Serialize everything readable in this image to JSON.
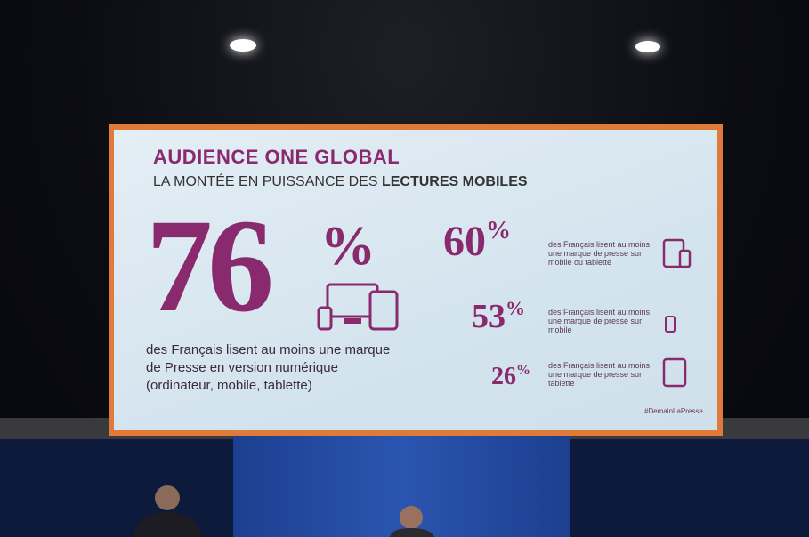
{
  "slide": {
    "title": "AUDIENCE ONE GLOBAL",
    "subtitle": {
      "text": "LA MONTÉE EN PUISSANCE DES",
      "emphasis": "LECTURES MOBILES"
    },
    "main_stat": {
      "value": "76",
      "unit": "%",
      "description": [
        "des Français lisent au moins une marque",
        "de Presse en version numérique",
        "(ordinateur, mobile, tablette)"
      ]
    },
    "stats": [
      {
        "value": "60",
        "unit": "%",
        "description": [
          "des Français lisent au moins",
          "une marque de presse sur",
          "mobile ou tablette"
        ]
      },
      {
        "value": "53",
        "unit": "%",
        "description": [
          "des Français lisent au moins",
          "une marque de presse sur",
          "mobile"
        ]
      },
      {
        "value": "26",
        "unit": "%",
        "description": [
          "des Français lisent au moins",
          "une marque de presse sur",
          "tablette"
        ]
      }
    ],
    "hashtag": "#DemainLaPresse"
  }
}
